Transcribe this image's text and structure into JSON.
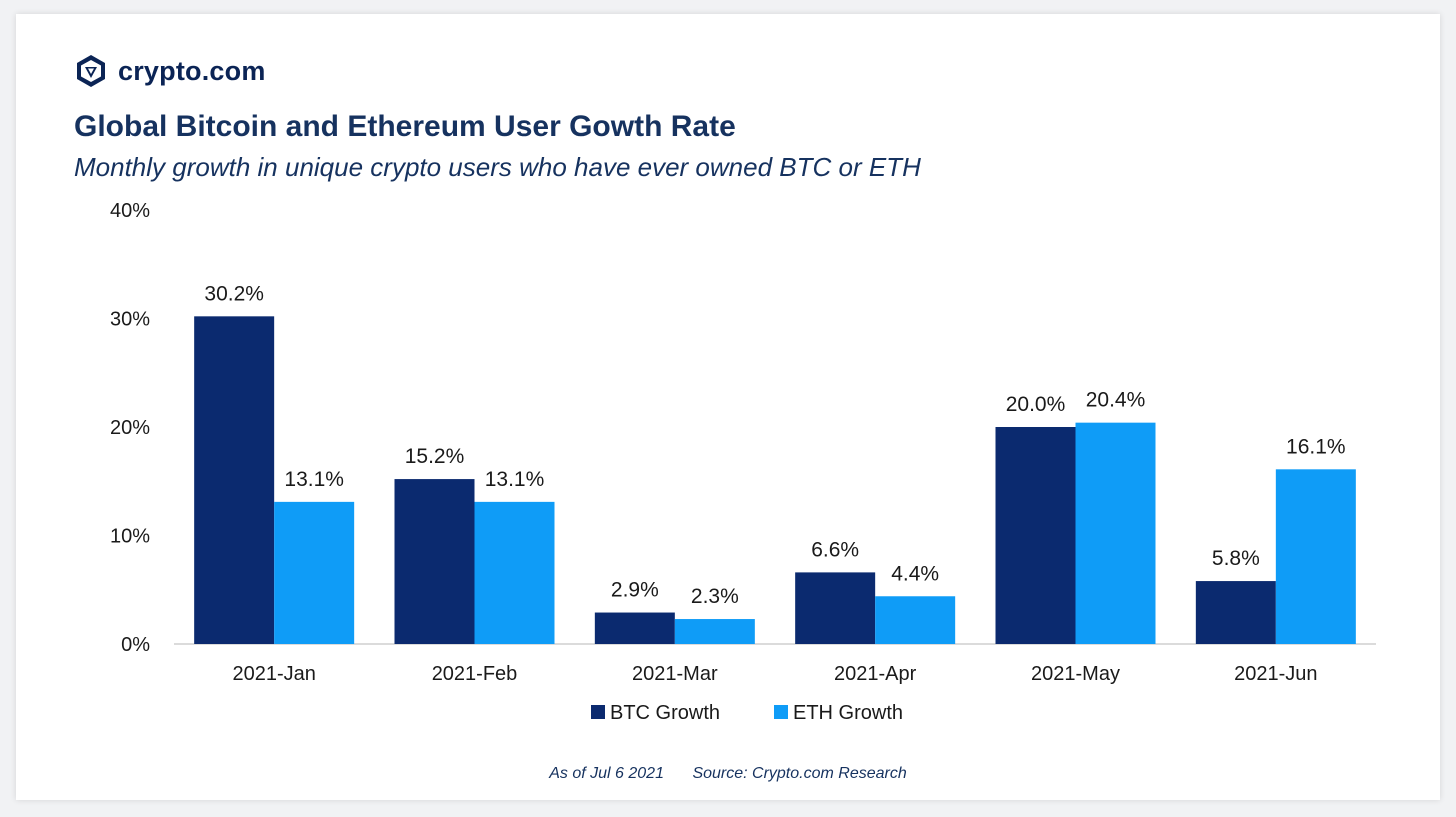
{
  "brand": {
    "name": "crypto.com",
    "icon": "crypto-com-logo-icon"
  },
  "header": {
    "title": "Global Bitcoin and Ethereum User Gowth Rate",
    "subtitle": "Monthly growth in unique crypto users who have ever owned BTC or ETH"
  },
  "footer": {
    "as_of": "As of Jul 6 2021",
    "source": "Source: Crypto.com Research"
  },
  "colors": {
    "btc": "#0b2a6f",
    "eth": "#0f9cf7",
    "text": "#16325f",
    "axis": "#cfcfcf"
  },
  "chart_data": {
    "type": "bar",
    "categories": [
      "2021-Jan",
      "2021-Feb",
      "2021-Mar",
      "2021-Apr",
      "2021-May",
      "2021-Jun"
    ],
    "series": [
      {
        "name": "BTC Growth",
        "values": [
          30.2,
          15.2,
          2.9,
          6.6,
          20.0,
          5.8
        ],
        "labels": [
          "30.2%",
          "15.2%",
          "2.9%",
          "6.6%",
          "20.0%",
          "5.8%"
        ]
      },
      {
        "name": "ETH Growth",
        "values": [
          13.1,
          13.1,
          2.3,
          4.4,
          20.4,
          16.1
        ],
        "labels": [
          "13.1%",
          "13.1%",
          "2.3%",
          "4.4%",
          "20.4%",
          "16.1%"
        ]
      }
    ],
    "y_ticks": [
      "0%",
      "10%",
      "20%",
      "30%",
      "40%"
    ],
    "y_tick_values": [
      0,
      10,
      20,
      30,
      40
    ],
    "ylim": [
      0,
      40
    ],
    "grid": false,
    "legend_position": "bottom"
  }
}
